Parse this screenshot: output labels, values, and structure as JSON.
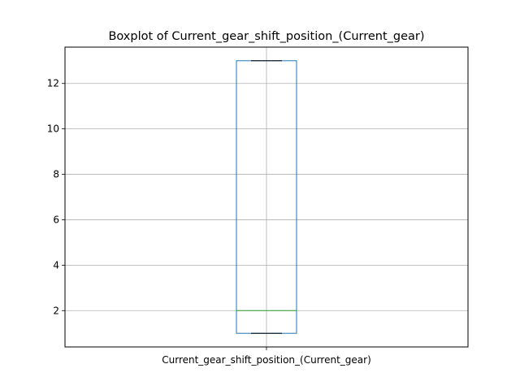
{
  "chart_data": {
    "type": "boxplot",
    "title": "Boxplot of Current_gear_shift_position_(Current_gear)",
    "categories": [
      "Current_gear_shift_position_(Current_gear)"
    ],
    "boxes": [
      {
        "category": "Current_gear_shift_position_(Current_gear)",
        "whisker_low": 1,
        "q1": 1,
        "median": 2,
        "q3": 13,
        "whisker_high": 13
      }
    ],
    "yticks": [
      2,
      4,
      6,
      8,
      10,
      12
    ],
    "ytick_labels": [
      "2",
      "4",
      "6",
      "8",
      "10",
      "12"
    ],
    "ylim": [
      0.4,
      13.6
    ],
    "grid": true,
    "colors": {
      "box": "#1f77b4",
      "median": "#2ca02c",
      "whisker": "#000000",
      "grid": "#b0b0b0"
    }
  }
}
